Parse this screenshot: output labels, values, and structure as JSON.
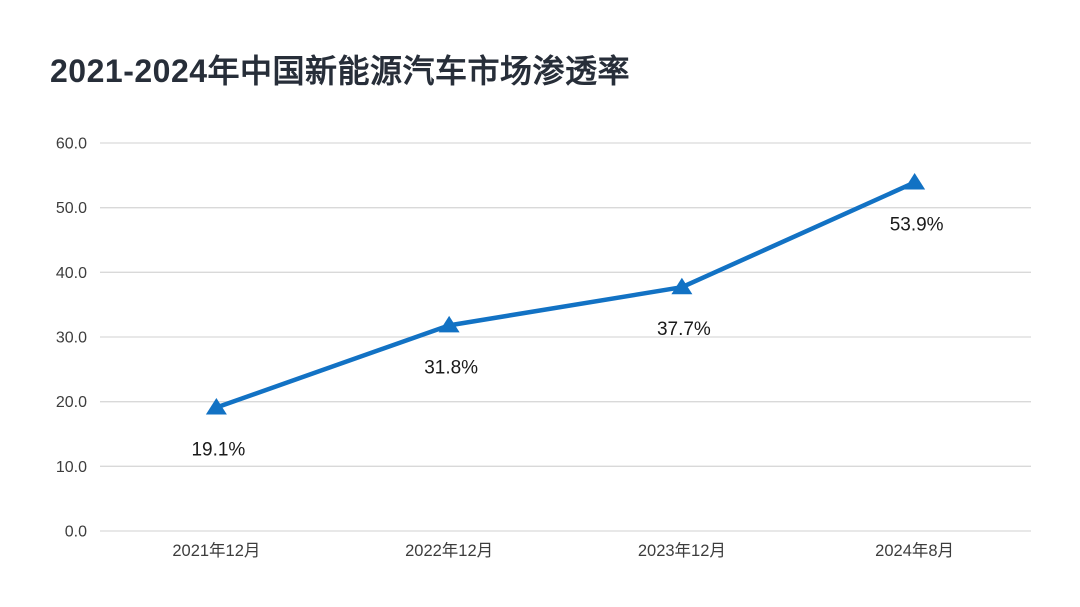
{
  "page": {
    "background_color": "#ffffff"
  },
  "chart_data": {
    "type": "line",
    "title": "2021-2024年中国新能源汽车市场渗透率",
    "title_color": "#272e39",
    "categories": [
      "2021年12月",
      "2022年12月",
      "2023年12月",
      "2024年8月"
    ],
    "values": [
      19.1,
      31.8,
      37.7,
      53.9
    ],
    "point_labels": [
      "19.1%",
      "31.8%",
      "37.7%",
      "53.9%"
    ],
    "xlabel": "",
    "ylabel": "",
    "ylim": [
      0,
      60
    ],
    "y_ticks": [
      0,
      10,
      20,
      30,
      40,
      50,
      60
    ],
    "y_tick_labels": [
      "0.0",
      "10.0",
      "20.0",
      "30.0",
      "40.0",
      "50.0",
      "60.0"
    ],
    "grid": true,
    "legend": "none",
    "marker": "triangle-up",
    "line_color": "#1272c4",
    "gridline_color": "#d9d9d9",
    "axis_label_color": "#3d3d3d",
    "data_label_color": "#1a1a1a"
  }
}
